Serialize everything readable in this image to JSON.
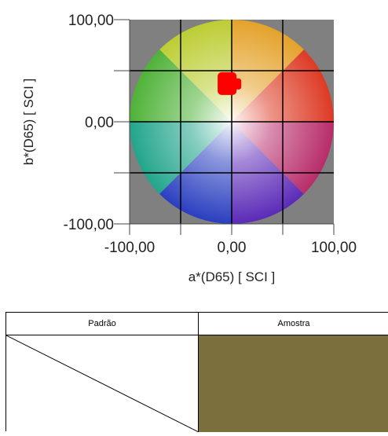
{
  "chart_data": {
    "type": "scatter",
    "xlabel": "a*(D65) [ SCI ]",
    "ylabel": "b*(D65) [ SCI ]",
    "xlim": [
      -100,
      100
    ],
    "ylim": [
      -100,
      100
    ],
    "grid": true,
    "x_ticks": [
      "-100,00",
      "0,00",
      "100,00"
    ],
    "y_ticks": [
      "100,00",
      "0,00",
      "-100,00"
    ],
    "background_color": "#808080",
    "marker_color": "#ff0000",
    "points": [
      {
        "x": -3,
        "y": 37
      }
    ]
  },
  "swatches": {
    "standard_label": "Padrão",
    "sample_label": "Amostra",
    "sample_color": "#7a6f3d"
  }
}
